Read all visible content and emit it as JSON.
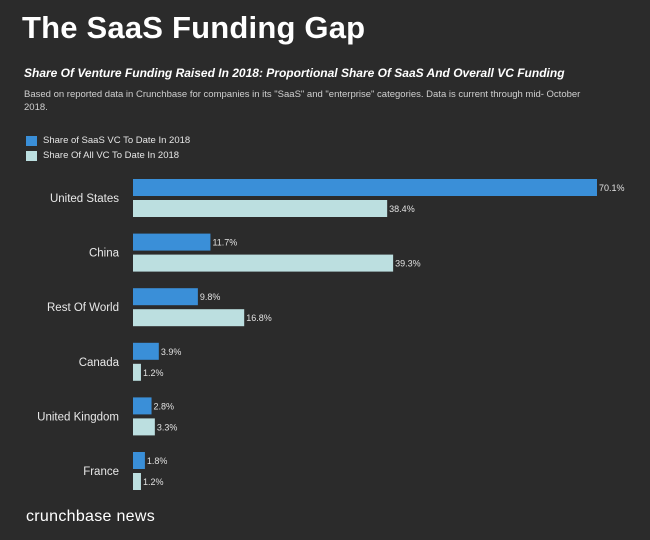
{
  "title": "The SaaS Funding Gap",
  "subtitle": "Share Of Venture Funding Raised In 2018: Proportional Share Of SaaS And Overall VC Funding",
  "note": "Based on reported data in Crunchbase for companies in its \"SaaS\" and \"enterprise\" categories. Data is current through mid- October 2018.",
  "brand": "crunchbase news",
  "colors": {
    "background": "#2b2b2b",
    "saas": "#3a8fd8",
    "all_vc": "#bcdfe0"
  },
  "chart_data": {
    "type": "bar",
    "orientation": "horizontal",
    "categories": [
      "United States",
      "China",
      "Rest Of World",
      "Canada",
      "United Kingdom",
      "France"
    ],
    "series": [
      {
        "name": "Share of SaaS VC To Date In 2018",
        "values": [
          70.1,
          11.7,
          9.8,
          3.9,
          2.8,
          1.8
        ],
        "labels": [
          "70.1%",
          "11.7%",
          "9.8%",
          "3.9%",
          "2.8%",
          "1.8%"
        ]
      },
      {
        "name": "Share Of All VC To Date In 2018",
        "values": [
          38.4,
          39.3,
          16.8,
          1.2,
          3.3,
          1.2
        ],
        "labels": [
          "38.4%",
          "39.3%",
          "16.8%",
          "1.2%",
          "3.3%",
          "1.2%"
        ]
      }
    ],
    "xlim": [
      0,
      70.1
    ],
    "legend_position": "top-left",
    "grid": false
  }
}
